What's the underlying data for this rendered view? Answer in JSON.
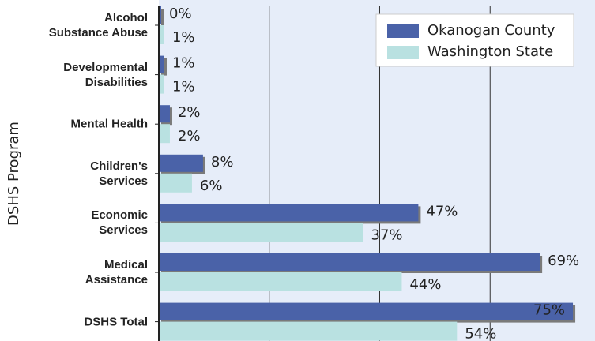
{
  "chart_data": {
    "type": "hbar",
    "y_axis_title": "DSHS Program",
    "categories": [
      "Alcohol\nSubstance Abuse",
      "Developmental\nDisabilities",
      "Mental Health",
      "Children's\nServices",
      "Economic\nServices",
      "Medical\nAssistance",
      "DSHS Total"
    ],
    "series": [
      {
        "name": "Okanogan County",
        "color": "#4a62a8",
        "values": [
          0,
          1,
          2,
          8,
          47,
          69,
          75
        ],
        "value_labels": [
          "0%",
          "1%",
          "2%",
          "8%",
          "47%",
          "69%",
          "75%"
        ]
      },
      {
        "name": "Washington State",
        "color": "#b9e1e1",
        "values": [
          1,
          1,
          2,
          6,
          37,
          44,
          54
        ],
        "value_labels": [
          "1%",
          "1%",
          "2%",
          "6%",
          "37%",
          "44%",
          "54%"
        ]
      }
    ],
    "xlim": [
      0,
      79
    ],
    "gridlines": [
      20,
      40,
      60
    ],
    "legend": "top-right"
  }
}
